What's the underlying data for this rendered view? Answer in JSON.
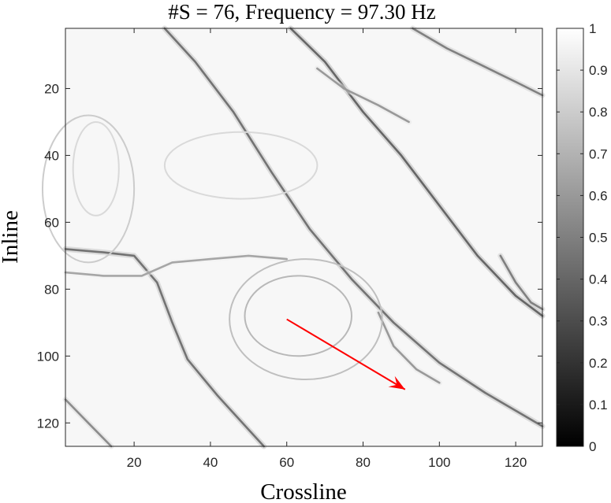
{
  "chart_data": {
    "type": "heatmap",
    "title": "#S = 76, Frequency = 97.30 Hz",
    "xlabel": "Crossline",
    "ylabel": "Inline",
    "xlim": [
      2,
      127
    ],
    "ylim": [
      127,
      2
    ],
    "xticks": [
      20,
      40,
      60,
      80,
      100,
      120
    ],
    "yticks": [
      20,
      40,
      60,
      80,
      100,
      120
    ],
    "colormap": "gray",
    "colorbar": {
      "range": [
        0,
        1
      ],
      "ticks": [
        "0",
        "0.1",
        "0.2",
        "0.3",
        "0.4",
        "0.5",
        "0.6",
        "0.7",
        "0.8",
        "0.9",
        "1"
      ]
    },
    "background_value": 0.97,
    "features": [
      {
        "kind": "curve",
        "points": [
          [
            28,
            2
          ],
          [
            36,
            12
          ],
          [
            46,
            27
          ],
          [
            56,
            45
          ],
          [
            66,
            62
          ],
          [
            77,
            77
          ],
          [
            88,
            90
          ],
          [
            100,
            102
          ],
          [
            112,
            111
          ],
          [
            127,
            121
          ]
        ],
        "min_value": 0.45
      },
      {
        "kind": "curve",
        "points": [
          [
            61,
            2
          ],
          [
            70,
            12
          ],
          [
            80,
            27
          ],
          [
            90,
            40
          ],
          [
            100,
            55
          ],
          [
            110,
            70
          ],
          [
            120,
            82
          ],
          [
            127,
            88
          ]
        ],
        "min_value": 0.4
      },
      {
        "kind": "curve",
        "points": [
          [
            93,
            2
          ],
          [
            102,
            8
          ],
          [
            111,
            13
          ],
          [
            120,
            18
          ],
          [
            127,
            22
          ]
        ],
        "min_value": 0.5
      },
      {
        "kind": "curve",
        "points": [
          [
            68,
            14
          ],
          [
            75,
            20
          ],
          [
            84,
            25
          ],
          [
            92,
            30
          ]
        ],
        "min_value": 0.6
      },
      {
        "kind": "curve",
        "points": [
          [
            2,
            68
          ],
          [
            12,
            69
          ],
          [
            20,
            70
          ],
          [
            26,
            78
          ],
          [
            30,
            90
          ],
          [
            34,
            101
          ],
          [
            42,
            112
          ],
          [
            50,
            122
          ],
          [
            54,
            127
          ]
        ],
        "min_value": 0.45
      },
      {
        "kind": "curve",
        "points": [
          [
            2,
            75
          ],
          [
            12,
            76
          ],
          [
            22,
            76
          ],
          [
            30,
            72
          ],
          [
            40,
            71
          ],
          [
            50,
            70
          ],
          [
            60,
            71
          ]
        ],
        "min_value": 0.65
      },
      {
        "kind": "curve",
        "points": [
          [
            2,
            113
          ],
          [
            8,
            120
          ],
          [
            14,
            127
          ]
        ],
        "min_value": 0.55
      },
      {
        "kind": "curve",
        "points": [
          [
            84,
            87
          ],
          [
            88,
            97
          ],
          [
            94,
            104
          ],
          [
            100,
            108
          ]
        ],
        "min_value": 0.6
      },
      {
        "kind": "curve",
        "points": [
          [
            116,
            70
          ],
          [
            120,
            78
          ],
          [
            124,
            84
          ],
          [
            127,
            86
          ]
        ],
        "min_value": 0.5
      },
      {
        "kind": "ellipse",
        "center": [
          63,
          88
        ],
        "radius": [
          14,
          12
        ],
        "min_value": 0.72
      },
      {
        "kind": "ellipse",
        "center": [
          65,
          89
        ],
        "radius": [
          20,
          18
        ],
        "min_value": 0.75
      },
      {
        "kind": "ellipse",
        "center": [
          48,
          43
        ],
        "radius": [
          20,
          10
        ],
        "min_value": 0.85
      },
      {
        "kind": "ellipse",
        "center": [
          8,
          50
        ],
        "radius": [
          12,
          22
        ],
        "min_value": 0.8
      },
      {
        "kind": "ellipse",
        "center": [
          10,
          44
        ],
        "radius": [
          6,
          14
        ],
        "min_value": 0.85
      }
    ],
    "annotation": {
      "type": "arrow",
      "color": "#ff0000",
      "from": [
        60,
        89
      ],
      "to": [
        91,
        110
      ]
    }
  }
}
